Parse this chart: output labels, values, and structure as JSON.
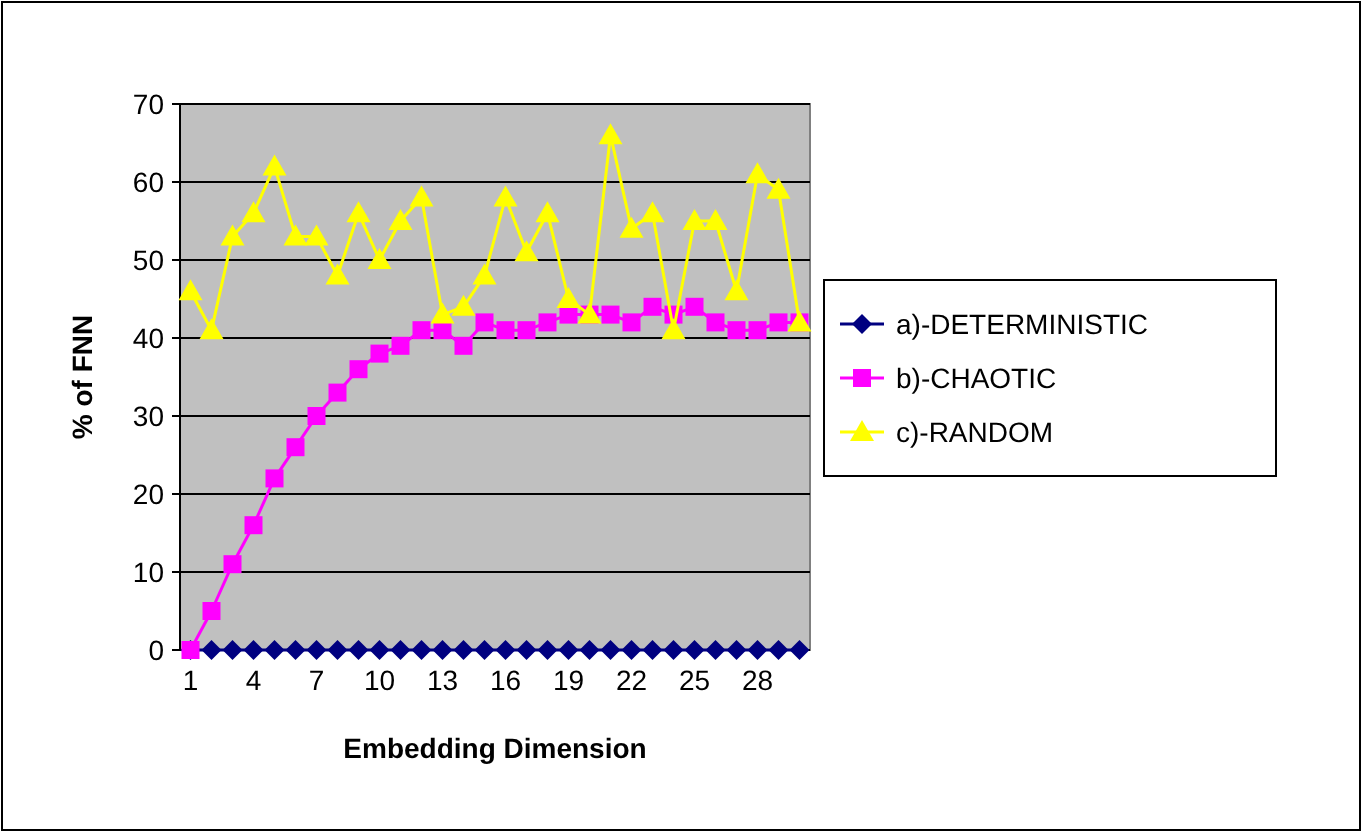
{
  "chart_data": {
    "type": "line",
    "xlabel": "Embedding Dimension",
    "ylabel": "% of FNN",
    "categories": [
      "1",
      null,
      null,
      "4",
      null,
      null,
      "7",
      null,
      null,
      "10",
      null,
      null,
      "13",
      null,
      null,
      "16",
      null,
      null,
      "19",
      null,
      null,
      "22",
      null,
      null,
      "25",
      null,
      null,
      "28",
      null,
      null
    ],
    "series": [
      {
        "name": "a)-DETERMINISTIC",
        "color": "#000080",
        "marker": "diamond",
        "values": [
          0,
          0,
          0,
          0,
          0,
          0,
          0,
          0,
          0,
          0,
          0,
          0,
          0,
          0,
          0,
          0,
          0,
          0,
          0,
          0,
          0,
          0,
          0,
          0,
          0,
          0,
          0,
          0,
          0,
          0
        ]
      },
      {
        "name": "b)-CHAOTIC",
        "color": "#ff00ff",
        "marker": "square",
        "values": [
          0,
          5,
          11,
          16,
          22,
          26,
          30,
          33,
          36,
          38,
          39,
          41,
          41,
          39,
          42,
          41,
          41,
          42,
          43,
          43,
          43,
          42,
          44,
          43,
          44,
          42,
          41,
          41,
          42,
          42
        ]
      },
      {
        "name": "c)-RANDOM",
        "color": "#ffff00",
        "marker": "triangle",
        "values": [
          46,
          41,
          53,
          56,
          62,
          53,
          53,
          48,
          56,
          50,
          55,
          58,
          43,
          44,
          48,
          58,
          51,
          56,
          45,
          43,
          66,
          54,
          56,
          41,
          55,
          55,
          46,
          61,
          59,
          42
        ]
      }
    ],
    "ylim": [
      0,
      70
    ],
    "yticks": [
      0,
      10,
      20,
      30,
      40,
      50,
      60,
      70
    ],
    "grid": "y",
    "legend": "right"
  }
}
